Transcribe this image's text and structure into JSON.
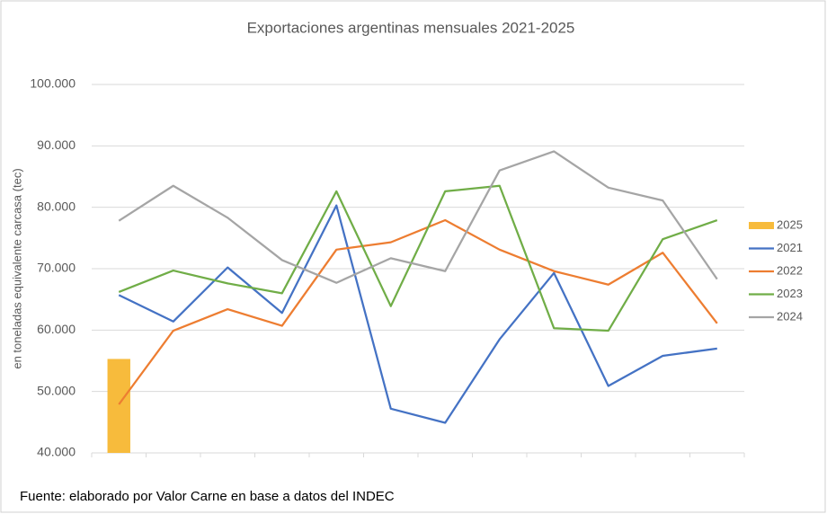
{
  "chart_data": {
    "type": "line",
    "title": "Exportaciones argentinas mensuales 2021-2025",
    "y_label": "en toneladas equivalente carcasa (tec)",
    "source": "Fuente: elaborado por  Valor Carne en base a datos del INDEC",
    "categories": [
      null,
      null,
      null,
      null,
      null,
      null,
      null,
      null,
      null,
      null,
      null,
      null
    ],
    "series": [
      {
        "name": "2025",
        "type": "bar",
        "color": "#f7bb3c",
        "values": [
          55300,
          null,
          null,
          null,
          null,
          null,
          null,
          null,
          null,
          null,
          null,
          null
        ]
      },
      {
        "name": "2021",
        "color": "#4472c4",
        "values": [
          65700,
          61400,
          70200,
          62800,
          80300,
          47200,
          44900,
          58500,
          69300,
          50900,
          55800,
          57000
        ]
      },
      {
        "name": "2022",
        "color": "#ed7d31",
        "values": [
          47900,
          59900,
          63400,
          60700,
          73100,
          74300,
          77900,
          73100,
          69600,
          67400,
          72600,
          61100
        ]
      },
      {
        "name": "2023",
        "color": "#70ad47",
        "values": [
          66200,
          69700,
          67600,
          66000,
          82600,
          63900,
          82600,
          83500,
          60300,
          59900,
          74800,
          77900
        ]
      },
      {
        "name": "2024",
        "color": "#a5a5a5",
        "values": [
          77800,
          83500,
          78300,
          71400,
          67700,
          71700,
          69600,
          86000,
          89100,
          83200,
          81100,
          68300
        ]
      }
    ],
    "ylim": [
      40000,
      100000
    ],
    "yticks": [
      {
        "value": 40000,
        "label": "40.000"
      },
      {
        "value": 50000,
        "label": "50.000"
      },
      {
        "value": 60000,
        "label": "60.000"
      },
      {
        "value": 70000,
        "label": "70.000"
      },
      {
        "value": 80000,
        "label": "80.000"
      },
      {
        "value": 90000,
        "label": "90.000"
      },
      {
        "value": 100000,
        "label": "100.000"
      }
    ],
    "grid": true,
    "legend": "right"
  }
}
